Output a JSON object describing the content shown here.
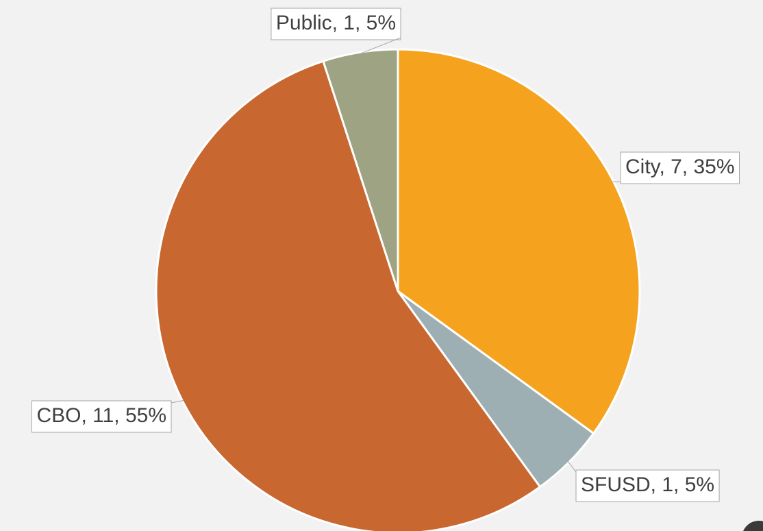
{
  "chart_data": {
    "type": "pie",
    "categories": [
      "City",
      "SFUSD",
      "CBO",
      "Public"
    ],
    "values": [
      7,
      1,
      11,
      1
    ],
    "value_labels": [
      "City, 7, 35%",
      "SFUSD, 1, 5%",
      "CBO, 11, 55%",
      "Public, 1, 5%"
    ],
    "colors": [
      "#f5a31f",
      "#9eafb3",
      "#c96730",
      "#9ea383"
    ]
  }
}
